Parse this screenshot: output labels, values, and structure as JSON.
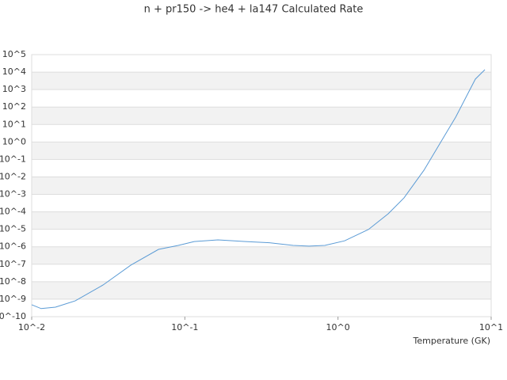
{
  "chart_data": {
    "type": "line",
    "title": "n + pr150 -> he4 + la147 Calculated Rate",
    "x_label": "Temperature (GK)",
    "log_x": true,
    "log_y": true,
    "grid": true,
    "xlim": [
      0.01,
      10
    ],
    "xticks": [
      {
        "value": 0.01,
        "label": "10^-2"
      },
      {
        "value": 0.1,
        "label": "10^-1"
      },
      {
        "value": 1,
        "label": "10^0"
      },
      {
        "value": 10,
        "label": "10^1"
      }
    ],
    "ylim": [
      1e-10,
      100000
    ],
    "yticks": [
      {
        "value": 1e-10,
        "label": "10^-10"
      },
      {
        "value": 1e-09,
        "label": "10^-9"
      },
      {
        "value": 1e-08,
        "label": "10^-8"
      },
      {
        "value": 1e-07,
        "label": "10^-7"
      },
      {
        "value": 1e-06,
        "label": "10^-6"
      },
      {
        "value": 1e-05,
        "label": "10^-5"
      },
      {
        "value": 0.0001,
        "label": "10^-4"
      },
      {
        "value": 0.001,
        "label": "10^-3"
      },
      {
        "value": 0.01,
        "label": "10^-2"
      },
      {
        "value": 0.1,
        "label": "10^-1"
      },
      {
        "value": 1,
        "label": "10^0"
      },
      {
        "value": 10,
        "label": "10^1"
      },
      {
        "value": 100,
        "label": "10^2"
      },
      {
        "value": 1000,
        "label": "10^3"
      },
      {
        "value": 10000,
        "label": "10^4"
      },
      {
        "value": 100000,
        "label": "10^5"
      }
    ],
    "x": [
      0.01,
      0.01153,
      0.01429,
      0.01928,
      0.02924,
      0.04436,
      0.0673,
      0.0906,
      0.1151,
      0.1644,
      0.2495,
      0.3565,
      0.5093,
      0.6471,
      0.8204,
      1.104,
      1.581,
      2.128,
      2.698,
      3.639,
      5.2,
      5.861,
      7.889,
      9.099
    ],
    "series": [
      {
        "color": "#5b9bd5",
        "values": [
          4.8e-10,
          2.9e-10,
          3.5e-10,
          8.1e-10,
          6.5e-09,
          8.9e-08,
          7.1e-07,
          1.2e-06,
          2e-06,
          2.5e-06,
          2e-06,
          1.7e-06,
          1.2e-06,
          1.1e-06,
          1.2e-06,
          2.2e-06,
          9.8e-06,
          7.8e-05,
          0.00063,
          0.024,
          4.5,
          26,
          4000,
          13800
        ]
      }
    ]
  }
}
